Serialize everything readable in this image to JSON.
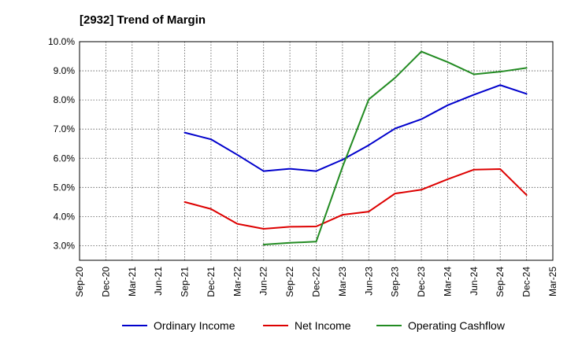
{
  "chart_data": {
    "type": "line",
    "title": "[2932]  Trend of Margin",
    "xlabel": "",
    "ylabel": "",
    "ylim": [
      2.5,
      10.0
    ],
    "yticks": [
      3.0,
      4.0,
      5.0,
      6.0,
      7.0,
      8.0,
      9.0,
      10.0
    ],
    "ytick_labels": [
      "3.0%",
      "4.0%",
      "5.0%",
      "6.0%",
      "7.0%",
      "8.0%",
      "9.0%",
      "10.0%"
    ],
    "categories": [
      "Sep-20",
      "Dec-20",
      "Mar-21",
      "Jun-21",
      "Sep-21",
      "Dec-21",
      "Mar-22",
      "Jun-22",
      "Sep-22",
      "Dec-22",
      "Mar-23",
      "Jun-23",
      "Sep-23",
      "Dec-23",
      "Mar-24",
      "Jun-24",
      "Sep-24",
      "Dec-24",
      "Mar-25"
    ],
    "grid": true,
    "legend_position": "bottom",
    "series": [
      {
        "name": "Ordinary Income",
        "color": "#0000cc",
        "values": [
          null,
          null,
          null,
          null,
          6.88,
          6.65,
          6.12,
          5.56,
          5.64,
          5.56,
          5.95,
          6.45,
          7.02,
          7.34,
          7.82,
          8.18,
          8.51,
          8.21,
          null
        ]
      },
      {
        "name": "Net Income",
        "color": "#dd0000",
        "values": [
          null,
          null,
          null,
          null,
          4.5,
          4.26,
          3.75,
          3.58,
          3.65,
          3.66,
          4.06,
          4.17,
          4.79,
          4.92,
          5.28,
          5.61,
          5.63,
          4.74,
          null
        ]
      },
      {
        "name": "Operating Cashflow",
        "color": "#228b22",
        "values": [
          null,
          null,
          null,
          null,
          null,
          null,
          null,
          3.04,
          3.1,
          3.14,
          5.7,
          8.02,
          8.76,
          9.66,
          9.3,
          8.88,
          8.97,
          9.1,
          null
        ]
      }
    ]
  }
}
